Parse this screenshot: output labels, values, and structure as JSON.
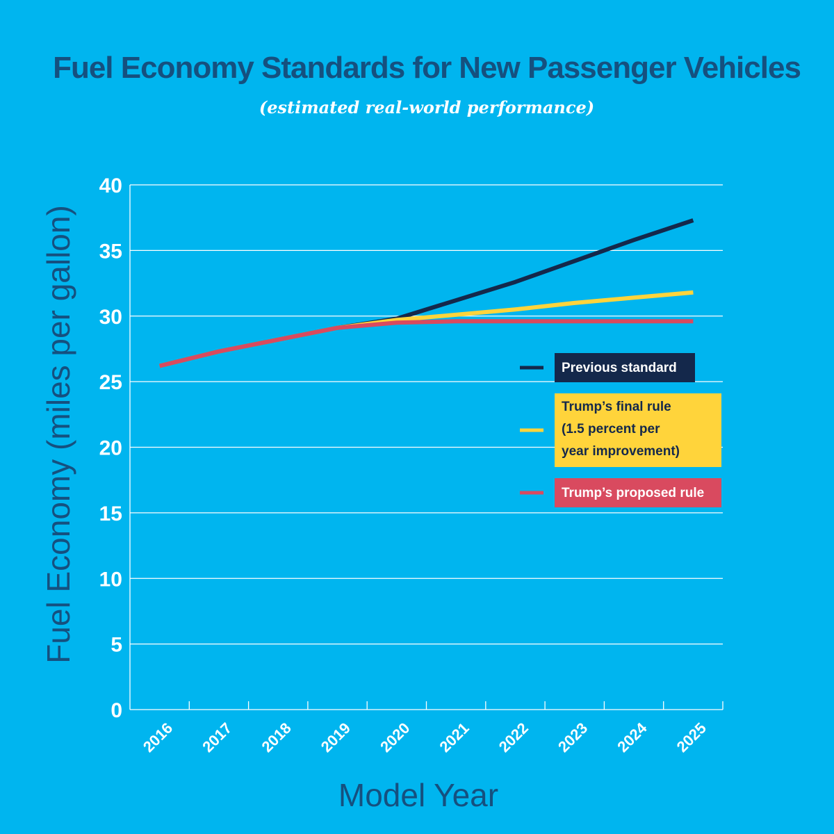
{
  "chart_data": {
    "type": "line",
    "title": "Fuel Economy Standards for New Passenger Vehicles",
    "subtitle": "(estimated real-world performance)",
    "xlabel": "Model Year",
    "ylabel": "Fuel Economy (miles per gallon)",
    "x": [
      "2016",
      "2017",
      "2018",
      "2019",
      "2020",
      "2021",
      "2022",
      "2023",
      "2024",
      "2025"
    ],
    "ylim": [
      0,
      40
    ],
    "yticks": [
      "0",
      "5",
      "10",
      "15",
      "20",
      "25",
      "30",
      "35",
      "40"
    ],
    "grid": true,
    "legend_position": "right",
    "series": [
      {
        "name": "Previous standard",
        "color": "#14284b",
        "text_color": "#ffffff",
        "values": [
          26.2,
          27.3,
          28.2,
          29.1,
          29.8,
          31.2,
          32.6,
          34.2,
          35.8,
          37.3
        ],
        "legend_lines": [
          "Previous standard"
        ]
      },
      {
        "name": "Trump's final rule (1.5 percent per year improvement)",
        "color": "#ffd43b",
        "text_color": "#14284b",
        "values": [
          26.2,
          27.3,
          28.2,
          29.1,
          29.7,
          30.1,
          30.5,
          31.0,
          31.4,
          31.8
        ],
        "legend_lines": [
          "Trump’s final rule",
          "(1.5 percent per",
          "year improvement)"
        ]
      },
      {
        "name": "Trump's proposed rule",
        "color": "#d94a5f",
        "text_color": "#ffffff",
        "values": [
          26.2,
          27.3,
          28.2,
          29.1,
          29.5,
          29.6,
          29.6,
          29.6,
          29.6,
          29.6
        ],
        "legend_lines": [
          "Trump’s proposed rule"
        ]
      }
    ]
  }
}
